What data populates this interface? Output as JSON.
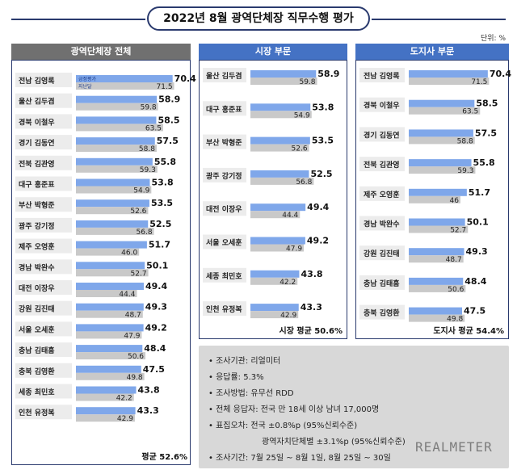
{
  "title": "2022년 8월 광역단체장 직무수행 평가",
  "unit": "단위: %",
  "legend": {
    "current": "긍정평가",
    "previous": "지난달"
  },
  "colors": {
    "current": "#7fa7ea",
    "previous": "#c9c9c9",
    "head_dark": "#707070",
    "head_blue": "#4472c4",
    "frame": "#2a3a6e"
  },
  "chart_data": [
    {
      "type": "bar",
      "title": "광역단체장 전체",
      "categories": [
        "전남 김영록",
        "울산 김두겸",
        "경북 이철우",
        "경기 김동연",
        "전북 김관영",
        "대구 홍준표",
        "부산 박형준",
        "광주 강기정",
        "제주 오영훈",
        "경남 박완수",
        "대전 이장우",
        "강원 김진태",
        "서울 오세훈",
        "충남 김태흠",
        "충북 김영환",
        "세종 최민호",
        "인천 유정복"
      ],
      "series": [
        {
          "name": "긍정평가",
          "values": [
            70.4,
            58.9,
            58.5,
            57.5,
            55.8,
            53.8,
            53.5,
            52.5,
            51.7,
            50.1,
            49.4,
            49.3,
            49.2,
            48.4,
            47.5,
            43.8,
            43.3
          ]
        },
        {
          "name": "지난달",
          "values": [
            71.5,
            59.8,
            63.5,
            58.8,
            59.3,
            54.9,
            52.6,
            56.8,
            46.0,
            52.7,
            44.4,
            48.7,
            47.9,
            50.6,
            49.8,
            42.2,
            42.9
          ]
        }
      ],
      "value_labels_prev": [
        "71.5",
        "59.8",
        "63.5",
        "58.8",
        "59.3",
        "54.9",
        "52.6",
        "56.8",
        "46.0",
        "52.7",
        "44.4",
        "48.7",
        "47.9",
        "50.6",
        "49.8",
        "42.2",
        "42.9"
      ],
      "average": "평균 52.6%"
    },
    {
      "type": "bar",
      "title": "시장 부문",
      "categories": [
        "울산 김두겸",
        "대구 홍준표",
        "부산 박형준",
        "광주 강기정",
        "대전 이장우",
        "서울 오세훈",
        "세종 최민호",
        "인천 유정복"
      ],
      "series": [
        {
          "name": "긍정평가",
          "values": [
            58.9,
            53.8,
            53.5,
            52.5,
            49.4,
            49.2,
            43.8,
            43.3
          ]
        },
        {
          "name": "지난달",
          "values": [
            59.8,
            54.9,
            52.6,
            56.8,
            44.4,
            47.9,
            42.2,
            42.9
          ]
        }
      ],
      "value_labels_prev": [
        "59.8",
        "54.9",
        "52.6",
        "56.8",
        "44.4",
        "47.9",
        "42.2",
        "42.9"
      ],
      "average": "시장 평균 50.6%"
    },
    {
      "type": "bar",
      "title": "도지사 부문",
      "categories": [
        "전남 김영록",
        "경북 이철우",
        "경기 김동연",
        "전북 김관영",
        "제주 오영훈",
        "경남 박완수",
        "강원 김진태",
        "충남 김태흠",
        "충북 김영환"
      ],
      "series": [
        {
          "name": "긍정평가",
          "values": [
            70.4,
            58.5,
            57.5,
            55.8,
            51.7,
            50.1,
            49.3,
            48.4,
            47.5
          ]
        },
        {
          "name": "지난달",
          "values": [
            71.5,
            63.5,
            58.8,
            59.3,
            46,
            52.7,
            48.7,
            50.6,
            49.8
          ]
        }
      ],
      "value_labels_prev": [
        "71.5",
        "63.5",
        "58.8",
        "59.3",
        "46",
        "52.7",
        "48.7",
        "50.6",
        "49.8"
      ],
      "average": "도지사 평균 54.4%"
    }
  ],
  "survey_info": [
    "• 조사기관: 리얼미터",
    "• 응답률: 5.3%",
    "• 조사방법: 유무선 RDD",
    "• 전체 응답자: 전국 만 18세 이상 남녀 17,000명",
    "• 표집오차: 전국 ±0.8%p (95%신뢰수준)",
    "광역자치단체별 ±3.1%p (95%신뢰수준)",
    "• 조사기간: 7월 25일 ~ 8월 1일, 8월 25일 ~ 30일"
  ],
  "brand": "REALMETER"
}
